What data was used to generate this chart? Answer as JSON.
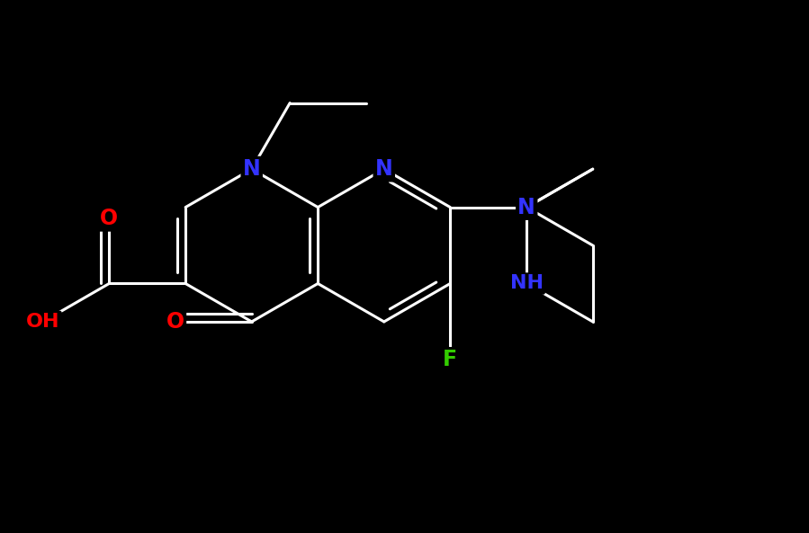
{
  "bg_color": "#000000",
  "bond_color": "#ffffff",
  "bond_lw": 2.2,
  "atom_colors": {
    "N": "#3333ff",
    "O": "#ff0000",
    "F": "#33cc00",
    "C": "#ffffff",
    "H": "#ffffff"
  },
  "font_size_atom": 17,
  "figsize": [
    8.99,
    5.93
  ],
  "dpi": 100,
  "xlim": [
    0,
    9.0
  ],
  "ylim": [
    0,
    5.93
  ]
}
